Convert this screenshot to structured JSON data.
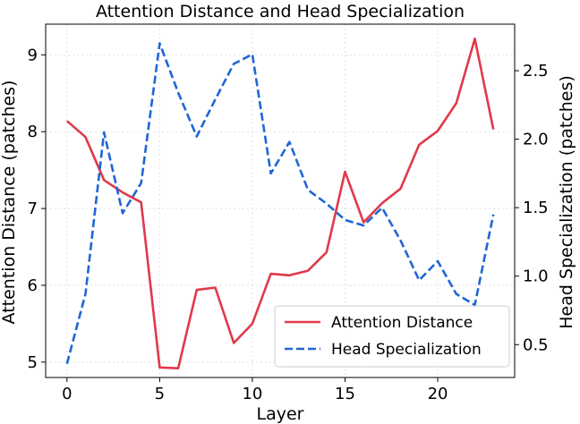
{
  "chart_data": {
    "type": "line",
    "title": "Attention Distance and Head Specialization",
    "xlabel": "Layer",
    "ylabel_left": "Attention Distance (patches)",
    "ylabel_right": "Head Specialization (patches)",
    "x": [
      0,
      1,
      2,
      3,
      4,
      5,
      6,
      7,
      8,
      9,
      10,
      11,
      12,
      13,
      14,
      15,
      16,
      17,
      18,
      19,
      20,
      21,
      22,
      23
    ],
    "xlim": [
      -1.15,
      24.15
    ],
    "xticks": [
      0,
      5,
      10,
      15,
      20
    ],
    "ylim_left": [
      4.8,
      9.4
    ],
    "yticks_left": [
      5,
      6,
      7,
      8,
      9
    ],
    "ylim_right": [
      0.26,
      2.84
    ],
    "yticks_right": [
      0.5,
      1.0,
      1.5,
      2.0,
      2.5
    ],
    "grid": true,
    "legend_position": "lower-right",
    "series": [
      {
        "name": "Attention Distance",
        "axis": "left",
        "color": "#e0394a",
        "style": "solid",
        "values": [
          8.14,
          7.93,
          7.37,
          7.21,
          7.08,
          4.93,
          4.92,
          5.94,
          5.97,
          5.25,
          5.5,
          6.15,
          6.13,
          6.19,
          6.43,
          7.48,
          6.82,
          7.07,
          7.26,
          7.83,
          8.01,
          8.37,
          9.21,
          8.03
        ]
      },
      {
        "name": "Head Specialization",
        "axis": "right",
        "color": "#1f66d6",
        "style": "dashed",
        "values": [
          0.36,
          0.87,
          2.05,
          1.46,
          1.68,
          2.7,
          2.34,
          2.02,
          2.29,
          2.55,
          2.62,
          1.75,
          1.98,
          1.63,
          1.53,
          1.41,
          1.37,
          1.5,
          1.26,
          0.97,
          1.11,
          0.87,
          0.79,
          1.45
        ]
      }
    ]
  }
}
